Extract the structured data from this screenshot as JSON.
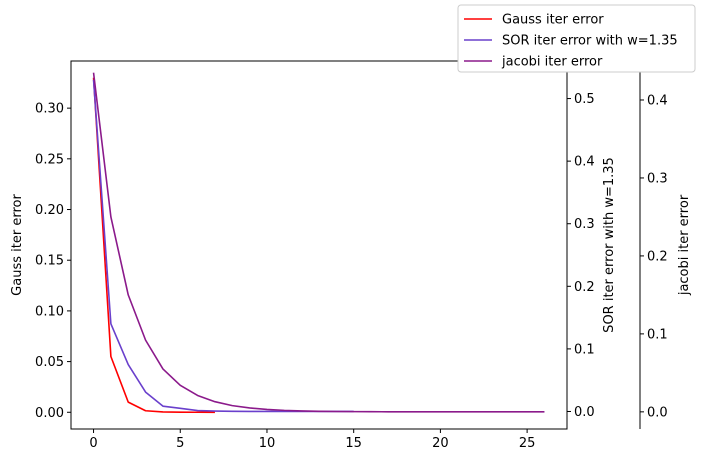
{
  "chart_data": {
    "type": "line",
    "x_ticks": [
      0,
      5,
      10,
      15,
      20,
      25
    ],
    "xlim": [
      -1.3,
      27.3
    ],
    "axes": [
      {
        "ylabel": "Gauss iter error",
        "ylim": [
          -0.0165,
          0.3465
        ],
        "ticks": [
          0.0,
          0.05,
          0.1,
          0.15,
          0.2,
          0.25,
          0.3
        ],
        "tick_labels": [
          "0.00",
          "0.05",
          "0.10",
          "0.15",
          "0.20",
          "0.25",
          "0.30"
        ],
        "position": "left"
      },
      {
        "ylabel": "SOR iter error with w=1.35",
        "ylim": [
          -0.028,
          0.56
        ],
        "ticks": [
          0.0,
          0.1,
          0.2,
          0.3,
          0.4,
          0.5
        ],
        "tick_labels": [
          "0.0",
          "0.1",
          "0.2",
          "0.3",
          "0.4",
          "0.5"
        ],
        "position": "right"
      },
      {
        "ylabel": "jacobi iter error",
        "ylim": [
          -0.022,
          0.45
        ],
        "ticks": [
          0.0,
          0.1,
          0.2,
          0.3,
          0.4
        ],
        "tick_labels": [
          "0.0",
          "0.1",
          "0.2",
          "0.3",
          "0.4"
        ],
        "position": "right-offset"
      }
    ],
    "series": [
      {
        "name": "Gauss iter error",
        "color": "#ff0000",
        "axis": 0,
        "x": [
          0,
          1,
          2,
          3,
          4,
          5,
          6,
          7
        ],
        "y": [
          0.33,
          0.055,
          0.01,
          0.0015,
          0.0003,
          6e-05,
          1e-05,
          0.0
        ]
      },
      {
        "name": "SOR iter error with w=1.35",
        "color": "#6a40cc",
        "axis": 1,
        "x": [
          0,
          1,
          2,
          3,
          4,
          5,
          6,
          7,
          8,
          9,
          10,
          11,
          12,
          13,
          14,
          15
        ],
        "y": [
          0.53,
          0.14,
          0.075,
          0.031,
          0.0085,
          0.005,
          0.0015,
          0.0006,
          0.0002,
          0.0001,
          5e-05,
          2e-05,
          1e-05,
          0.0,
          0.0,
          0.0
        ]
      },
      {
        "name": "jacobi iter error",
        "color": "#8b1a8b",
        "axis": 2,
        "x": [
          0,
          1,
          2,
          3,
          4,
          5,
          6,
          7,
          8,
          9,
          10,
          11,
          12,
          13,
          14,
          15,
          16,
          17,
          18,
          19,
          20,
          21,
          22,
          23,
          24,
          25,
          26
        ],
        "y": [
          0.435,
          0.25,
          0.15,
          0.092,
          0.055,
          0.034,
          0.021,
          0.013,
          0.008,
          0.005,
          0.0031,
          0.0019,
          0.0012,
          0.0007,
          0.00045,
          0.00028,
          0.00017,
          0.0001,
          6e-05,
          4e-05,
          2e-05,
          1e-05,
          0.0,
          0.0,
          0.0,
          0.0,
          0.0
        ]
      }
    ],
    "legend": {
      "placement": "top-right",
      "entries": [
        "Gauss iter error",
        "SOR iter error with w=1.35",
        "jacobi iter error"
      ]
    },
    "grid": false
  }
}
